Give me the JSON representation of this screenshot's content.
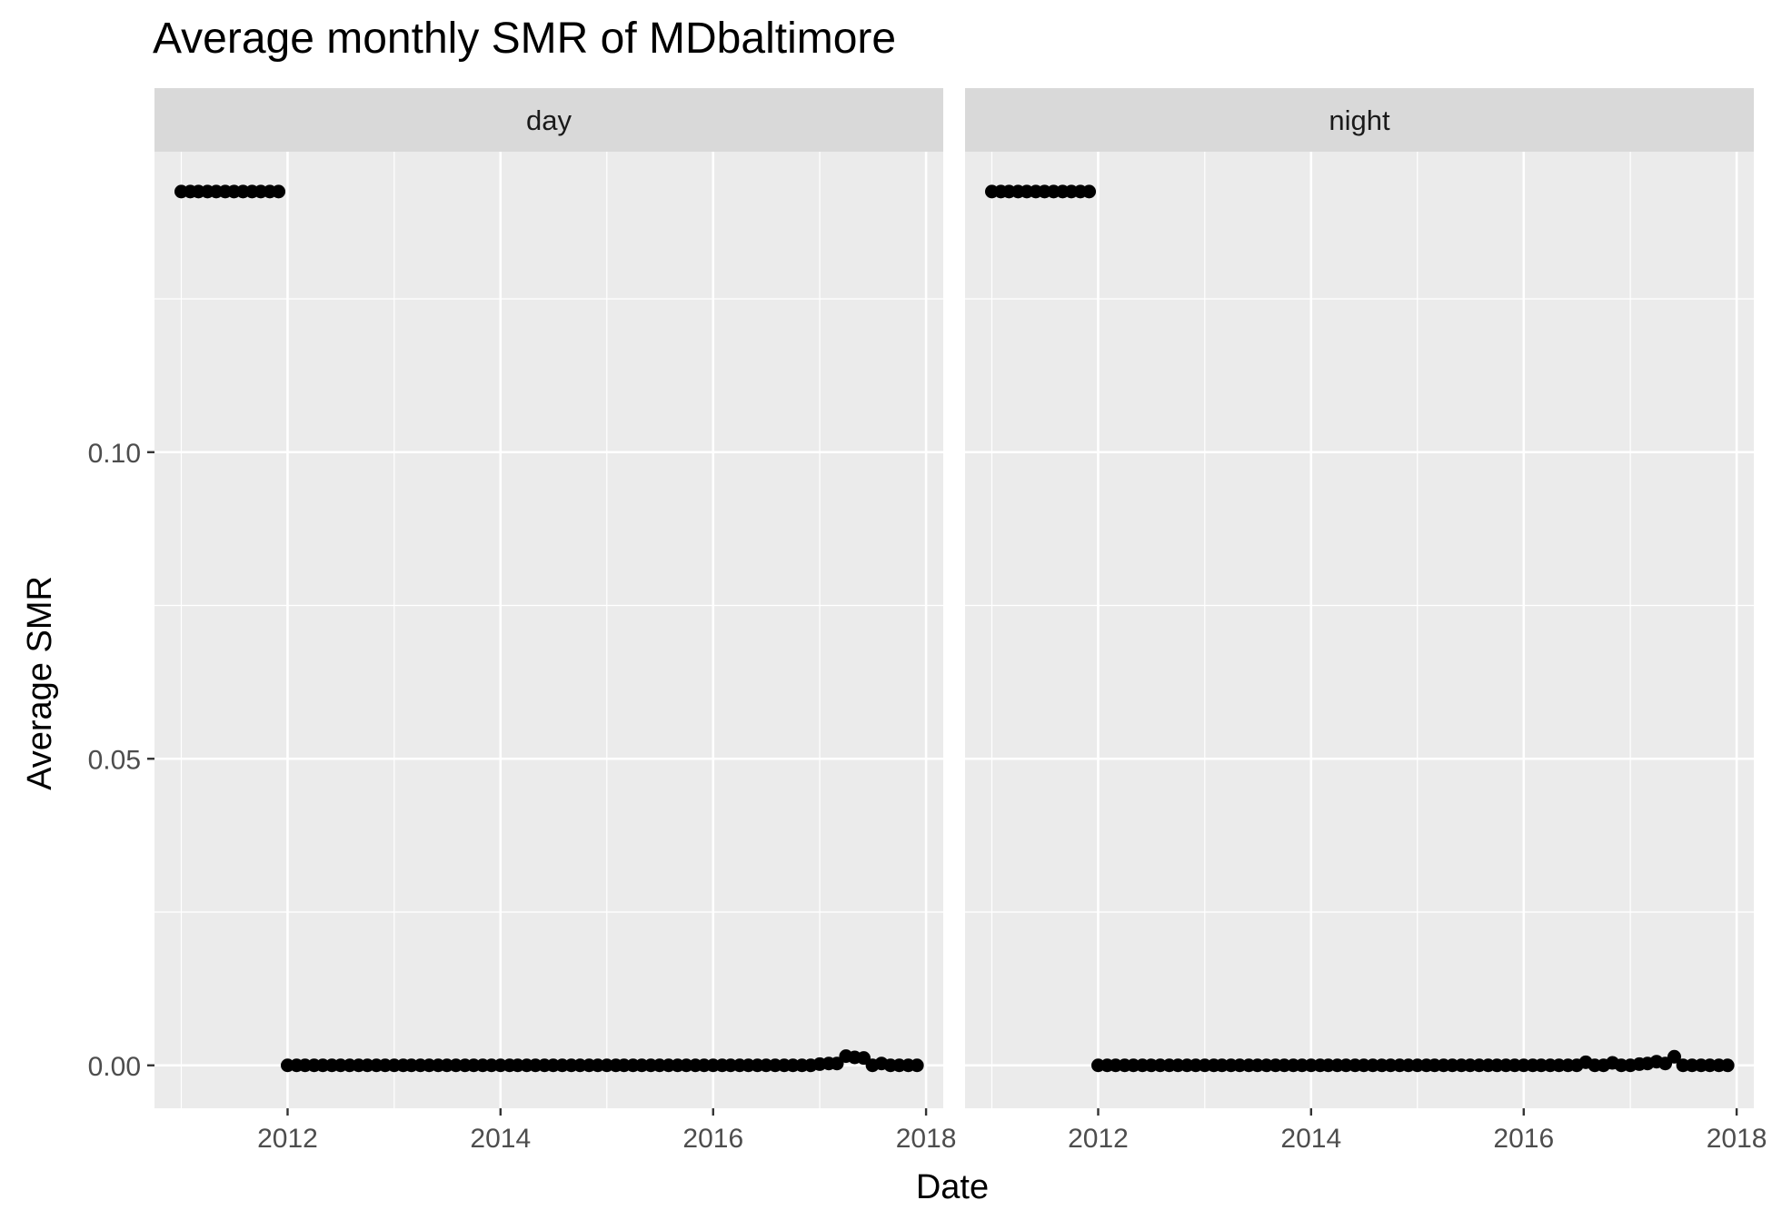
{
  "chart_data": {
    "type": "scatter",
    "title": "Average monthly SMR of MDbaltimore",
    "xlabel": "Date",
    "ylabel": "Average SMR",
    "x_ticks": [
      "2012",
      "2014",
      "2016",
      "2018"
    ],
    "y_ticks": [
      "0.00",
      "0.05",
      "0.10"
    ],
    "xlim": [
      "2010-10-01",
      "2018-03-01"
    ],
    "ylim": [
      -0.007,
      0.149
    ],
    "grid": true,
    "legend": "none",
    "colors": {
      "panel_bg": "#ebebeb",
      "strip_bg": "#d9d9d9",
      "grid": "#ffffff",
      "point": "#000000",
      "text": "#4d4d4d"
    },
    "panels": [
      {
        "strip": "day",
        "points": [
          {
            "x": "2011-01",
            "y": 0.1425
          },
          {
            "x": "2011-02",
            "y": 0.1425
          },
          {
            "x": "2011-03",
            "y": 0.1425
          },
          {
            "x": "2011-04",
            "y": 0.1425
          },
          {
            "x": "2011-05",
            "y": 0.1425
          },
          {
            "x": "2011-06",
            "y": 0.1425
          },
          {
            "x": "2011-07",
            "y": 0.1425
          },
          {
            "x": "2011-08",
            "y": 0.1425
          },
          {
            "x": "2011-09",
            "y": 0.1425
          },
          {
            "x": "2011-10",
            "y": 0.1425
          },
          {
            "x": "2011-11",
            "y": 0.1425
          },
          {
            "x": "2011-12",
            "y": 0.1425
          },
          {
            "x": "2012-01",
            "y": 0
          },
          {
            "x": "2012-02",
            "y": 0
          },
          {
            "x": "2012-03",
            "y": 0
          },
          {
            "x": "2012-04",
            "y": 0
          },
          {
            "x": "2012-05",
            "y": 0
          },
          {
            "x": "2012-06",
            "y": 0
          },
          {
            "x": "2012-07",
            "y": 0
          },
          {
            "x": "2012-08",
            "y": 0
          },
          {
            "x": "2012-09",
            "y": 0
          },
          {
            "x": "2012-10",
            "y": 0
          },
          {
            "x": "2012-11",
            "y": 0
          },
          {
            "x": "2012-12",
            "y": 0
          },
          {
            "x": "2013-01",
            "y": 0
          },
          {
            "x": "2013-02",
            "y": 0
          },
          {
            "x": "2013-03",
            "y": 0
          },
          {
            "x": "2013-04",
            "y": 0
          },
          {
            "x": "2013-05",
            "y": 0
          },
          {
            "x": "2013-06",
            "y": 0
          },
          {
            "x": "2013-07",
            "y": 0
          },
          {
            "x": "2013-08",
            "y": 0
          },
          {
            "x": "2013-09",
            "y": 0
          },
          {
            "x": "2013-10",
            "y": 0
          },
          {
            "x": "2013-11",
            "y": 0
          },
          {
            "x": "2013-12",
            "y": 0
          },
          {
            "x": "2014-01",
            "y": 0
          },
          {
            "x": "2014-02",
            "y": 0
          },
          {
            "x": "2014-03",
            "y": 0
          },
          {
            "x": "2014-04",
            "y": 0
          },
          {
            "x": "2014-05",
            "y": 0
          },
          {
            "x": "2014-06",
            "y": 0
          },
          {
            "x": "2014-07",
            "y": 0
          },
          {
            "x": "2014-08",
            "y": 0
          },
          {
            "x": "2014-09",
            "y": 0
          },
          {
            "x": "2014-10",
            "y": 0
          },
          {
            "x": "2014-11",
            "y": 0
          },
          {
            "x": "2014-12",
            "y": 0
          },
          {
            "x": "2015-01",
            "y": 0
          },
          {
            "x": "2015-02",
            "y": 0
          },
          {
            "x": "2015-03",
            "y": 0
          },
          {
            "x": "2015-04",
            "y": 0
          },
          {
            "x": "2015-05",
            "y": 0
          },
          {
            "x": "2015-06",
            "y": 0
          },
          {
            "x": "2015-07",
            "y": 0
          },
          {
            "x": "2015-08",
            "y": 0
          },
          {
            "x": "2015-09",
            "y": 0
          },
          {
            "x": "2015-10",
            "y": 0
          },
          {
            "x": "2015-11",
            "y": 0
          },
          {
            "x": "2015-12",
            "y": 0
          },
          {
            "x": "2016-01",
            "y": 0
          },
          {
            "x": "2016-02",
            "y": 0
          },
          {
            "x": "2016-03",
            "y": 0
          },
          {
            "x": "2016-04",
            "y": 0
          },
          {
            "x": "2016-05",
            "y": 0
          },
          {
            "x": "2016-06",
            "y": 0
          },
          {
            "x": "2016-07",
            "y": 0
          },
          {
            "x": "2016-08",
            "y": 0
          },
          {
            "x": "2016-09",
            "y": 0
          },
          {
            "x": "2016-10",
            "y": 0
          },
          {
            "x": "2016-11",
            "y": 0
          },
          {
            "x": "2016-12",
            "y": 0
          },
          {
            "x": "2017-01",
            "y": 0.0002
          },
          {
            "x": "2017-02",
            "y": 0.0003
          },
          {
            "x": "2017-03",
            "y": 0.0003
          },
          {
            "x": "2017-04",
            "y": 0.0015
          },
          {
            "x": "2017-05",
            "y": 0.0013
          },
          {
            "x": "2017-06",
            "y": 0.0012
          },
          {
            "x": "2017-07",
            "y": 0
          },
          {
            "x": "2017-08",
            "y": 0.0003
          },
          {
            "x": "2017-09",
            "y": 0
          },
          {
            "x": "2017-10",
            "y": 0
          },
          {
            "x": "2017-11",
            "y": 0
          },
          {
            "x": "2017-12",
            "y": 0
          }
        ]
      },
      {
        "strip": "night",
        "points": [
          {
            "x": "2011-01",
            "y": 0.1425
          },
          {
            "x": "2011-02",
            "y": 0.1425
          },
          {
            "x": "2011-03",
            "y": 0.1425
          },
          {
            "x": "2011-04",
            "y": 0.1425
          },
          {
            "x": "2011-05",
            "y": 0.1425
          },
          {
            "x": "2011-06",
            "y": 0.1425
          },
          {
            "x": "2011-07",
            "y": 0.1425
          },
          {
            "x": "2011-08",
            "y": 0.1425
          },
          {
            "x": "2011-09",
            "y": 0.1425
          },
          {
            "x": "2011-10",
            "y": 0.1425
          },
          {
            "x": "2011-11",
            "y": 0.1425
          },
          {
            "x": "2011-12",
            "y": 0.1425
          },
          {
            "x": "2012-01",
            "y": 0
          },
          {
            "x": "2012-02",
            "y": 0
          },
          {
            "x": "2012-03",
            "y": 0
          },
          {
            "x": "2012-04",
            "y": 0
          },
          {
            "x": "2012-05",
            "y": 0
          },
          {
            "x": "2012-06",
            "y": 0
          },
          {
            "x": "2012-07",
            "y": 0
          },
          {
            "x": "2012-08",
            "y": 0
          },
          {
            "x": "2012-09",
            "y": 0
          },
          {
            "x": "2012-10",
            "y": 0
          },
          {
            "x": "2012-11",
            "y": 0
          },
          {
            "x": "2012-12",
            "y": 0
          },
          {
            "x": "2013-01",
            "y": 0
          },
          {
            "x": "2013-02",
            "y": 0
          },
          {
            "x": "2013-03",
            "y": 0
          },
          {
            "x": "2013-04",
            "y": 0
          },
          {
            "x": "2013-05",
            "y": 0
          },
          {
            "x": "2013-06",
            "y": 0
          },
          {
            "x": "2013-07",
            "y": 0
          },
          {
            "x": "2013-08",
            "y": 0
          },
          {
            "x": "2013-09",
            "y": 0
          },
          {
            "x": "2013-10",
            "y": 0
          },
          {
            "x": "2013-11",
            "y": 0
          },
          {
            "x": "2013-12",
            "y": 0
          },
          {
            "x": "2014-01",
            "y": 0
          },
          {
            "x": "2014-02",
            "y": 0
          },
          {
            "x": "2014-03",
            "y": 0
          },
          {
            "x": "2014-04",
            "y": 0
          },
          {
            "x": "2014-05",
            "y": 0
          },
          {
            "x": "2014-06",
            "y": 0
          },
          {
            "x": "2014-07",
            "y": 0
          },
          {
            "x": "2014-08",
            "y": 0
          },
          {
            "x": "2014-09",
            "y": 0
          },
          {
            "x": "2014-10",
            "y": 0
          },
          {
            "x": "2014-11",
            "y": 0
          },
          {
            "x": "2014-12",
            "y": 0
          },
          {
            "x": "2015-01",
            "y": 0
          },
          {
            "x": "2015-02",
            "y": 0
          },
          {
            "x": "2015-03",
            "y": 0
          },
          {
            "x": "2015-04",
            "y": 0
          },
          {
            "x": "2015-05",
            "y": 0
          },
          {
            "x": "2015-06",
            "y": 0
          },
          {
            "x": "2015-07",
            "y": 0
          },
          {
            "x": "2015-08",
            "y": 0
          },
          {
            "x": "2015-09",
            "y": 0
          },
          {
            "x": "2015-10",
            "y": 0
          },
          {
            "x": "2015-11",
            "y": 0
          },
          {
            "x": "2015-12",
            "y": 0
          },
          {
            "x": "2016-01",
            "y": 0
          },
          {
            "x": "2016-02",
            "y": 0
          },
          {
            "x": "2016-03",
            "y": 0
          },
          {
            "x": "2016-04",
            "y": 0
          },
          {
            "x": "2016-05",
            "y": 0
          },
          {
            "x": "2016-06",
            "y": 0
          },
          {
            "x": "2016-07",
            "y": 0
          },
          {
            "x": "2016-08",
            "y": 0.0005
          },
          {
            "x": "2016-09",
            "y": 0
          },
          {
            "x": "2016-10",
            "y": 0
          },
          {
            "x": "2016-11",
            "y": 0.0004
          },
          {
            "x": "2016-12",
            "y": 0
          },
          {
            "x": "2017-01",
            "y": 0
          },
          {
            "x": "2017-02",
            "y": 0.0002
          },
          {
            "x": "2017-03",
            "y": 0.0003
          },
          {
            "x": "2017-04",
            "y": 0.0006
          },
          {
            "x": "2017-05",
            "y": 0.0003
          },
          {
            "x": "2017-06",
            "y": 0.0014
          },
          {
            "x": "2017-07",
            "y": 0
          },
          {
            "x": "2017-08",
            "y": 0
          },
          {
            "x": "2017-09",
            "y": 0
          },
          {
            "x": "2017-10",
            "y": 0
          },
          {
            "x": "2017-11",
            "y": 0
          },
          {
            "x": "2017-12",
            "y": 0
          }
        ]
      }
    ]
  }
}
